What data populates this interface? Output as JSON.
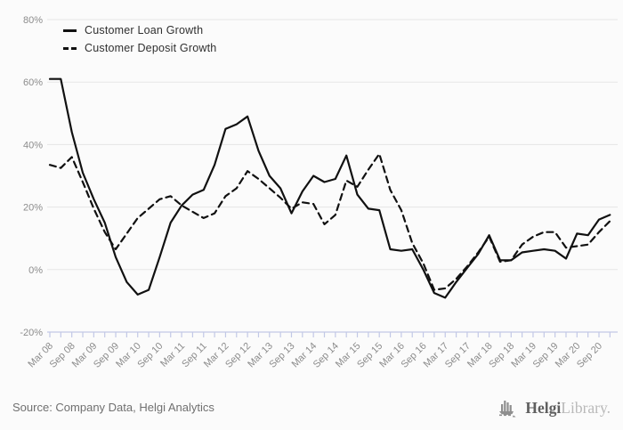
{
  "chart_data": {
    "type": "line",
    "title": "",
    "xlabel": "",
    "ylabel": "",
    "grid": true,
    "legend_position": "top-left",
    "ylim": [
      -20,
      80
    ],
    "yticks": [
      80,
      60,
      40,
      20,
      0,
      -20
    ],
    "ytick_suffix": "%",
    "x": [
      "Mar 08",
      "Jun 08",
      "Sep 08",
      "Dec 08",
      "Mar 09",
      "Jun 09",
      "Sep 09",
      "Dec 09",
      "Mar 10",
      "Jun 10",
      "Sep 10",
      "Dec 10",
      "Mar 11",
      "Jun 11",
      "Sep 11",
      "Dec 11",
      "Mar 12",
      "Jun 12",
      "Sep 12",
      "Dec 12",
      "Mar 13",
      "Jun 13",
      "Sep 13",
      "Dec 13",
      "Mar 14",
      "Jun 14",
      "Sep 14",
      "Dec 14",
      "Mar 15",
      "Jun 15",
      "Sep 15",
      "Dec 15",
      "Mar 16",
      "Jun 16",
      "Sep 16",
      "Dec 16",
      "Mar 17",
      "Jun 17",
      "Sep 17",
      "Dec 17",
      "Mar 18",
      "Jun 18",
      "Sep 18",
      "Dec 18",
      "Mar 19",
      "Jun 19",
      "Sep 19",
      "Dec 19",
      "Mar 20",
      "Jun 20",
      "Sep 20",
      "Dec 20"
    ],
    "xtick_label_every": 2,
    "series": [
      {
        "name": "Customer Loan Growth",
        "style": "solid",
        "color": "#111111",
        "values": [
          61,
          61,
          44,
          31,
          22.5,
          15,
          4,
          -4,
          -8,
          -6.5,
          4,
          15,
          20.5,
          24,
          25.5,
          33.5,
          45,
          46.5,
          49,
          38,
          30,
          26,
          18,
          25,
          30,
          28,
          29,
          36.5,
          24,
          19.5,
          19,
          6.5,
          6,
          6.5,
          0,
          -7.5,
          -9,
          -4,
          0.5,
          5,
          11,
          3,
          3,
          5.5,
          6,
          6.5,
          6,
          3.5,
          11.5,
          11,
          16,
          17.5
        ]
      },
      {
        "name": "Customer Deposit Growth",
        "style": "dashed",
        "color": "#111111",
        "values": [
          33.5,
          32.5,
          36,
          28,
          19.5,
          12,
          6.5,
          11.5,
          16.5,
          19.5,
          22.5,
          23.5,
          20.5,
          18.5,
          16.5,
          18,
          23.5,
          26,
          31.5,
          29,
          26,
          23,
          19.5,
          21.5,
          21,
          14.5,
          17.5,
          28.5,
          26.5,
          32,
          37,
          25.5,
          19,
          8.5,
          2,
          -6.5,
          -6,
          -3,
          1,
          5.5,
          10.5,
          2.5,
          3,
          8,
          10.5,
          12,
          12,
          7,
          7.5,
          8,
          12,
          15.5
        ]
      }
    ],
    "colors": {
      "background": "#fbfbfb",
      "gridline": "#e6e6e6",
      "axis_tick": "#c2c8e6",
      "tick_label": "#8c8c8c",
      "line": "#111111"
    }
  },
  "footer": {
    "source": "Source: Company Data, Helgi Analytics",
    "logo_brand": "Helgi",
    "logo_suffix": "Library."
  }
}
